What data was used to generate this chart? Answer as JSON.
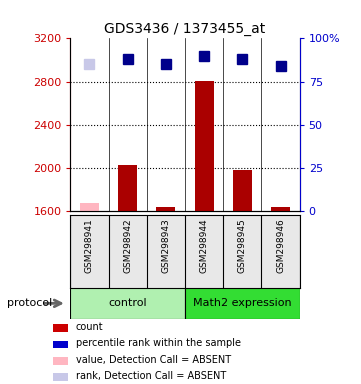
{
  "title": "GDS3436 / 1373455_at",
  "samples": [
    "GSM298941",
    "GSM298942",
    "GSM298943",
    "GSM298944",
    "GSM298945",
    "GSM298946"
  ],
  "bar_values": [
    1680,
    2030,
    1640,
    2810,
    1980,
    1640
  ],
  "bar_absent": [
    true,
    false,
    false,
    false,
    false,
    false
  ],
  "rank_values": [
    85,
    88,
    85,
    90,
    88,
    84
  ],
  "rank_absent": [
    true,
    false,
    false,
    false,
    false,
    false
  ],
  "ylim_left": [
    1600,
    3200
  ],
  "ylim_right": [
    0,
    100
  ],
  "yticks_left": [
    1600,
    2000,
    2400,
    2800,
    3200
  ],
  "yticks_right": [
    0,
    25,
    50,
    75,
    100
  ],
  "protocol_groups": [
    {
      "label": "control",
      "start": 0,
      "end": 3,
      "color": "#b0f0b0"
    },
    {
      "label": "Math2 expression",
      "start": 3,
      "end": 6,
      "color": "#33dd33"
    }
  ],
  "legend_items": [
    {
      "color": "#cc0000",
      "label": "count",
      "marker": "square"
    },
    {
      "color": "#0000cc",
      "label": "percentile rank within the sample",
      "marker": "square"
    },
    {
      "color": "#ffb6c1",
      "label": "value, Detection Call = ABSENT",
      "marker": "square"
    },
    {
      "color": "#c8c8e8",
      "label": "rank, Detection Call = ABSENT",
      "marker": "square"
    }
  ],
  "left_axis_color": "#cc0000",
  "right_axis_color": "#0000cc",
  "bar_width": 0.5,
  "rank_marker_size": 7,
  "bar_color_normal": "#aa0000",
  "bar_color_absent": "#ffb6c1",
  "rank_color_normal": "#00008b",
  "rank_color_absent": "#c8c8e8",
  "grid_color": "black",
  "grid_style": ":",
  "grid_linewidth": 0.8,
  "bg_color": "#e8e8e8"
}
